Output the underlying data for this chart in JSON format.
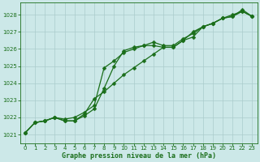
{
  "title": "Graphe pression niveau de la mer (hPa)",
  "bg_color": "#cce8e8",
  "grid_color": "#aacccc",
  "line_color": "#1a6e1a",
  "xlim": [
    -0.5,
    23.5
  ],
  "ylim": [
    1020.5,
    1028.7
  ],
  "yticks": [
    1021,
    1022,
    1023,
    1024,
    1025,
    1026,
    1027,
    1028
  ],
  "xticks": [
    0,
    1,
    2,
    3,
    4,
    5,
    6,
    7,
    8,
    9,
    10,
    11,
    12,
    13,
    14,
    15,
    16,
    17,
    18,
    19,
    20,
    21,
    22,
    23
  ],
  "series": [
    [
      1021.1,
      1021.7,
      1021.8,
      1022.0,
      1021.8,
      1021.8,
      1022.1,
      1022.5,
      1023.7,
      1025.0,
      1025.9,
      1026.1,
      1026.2,
      1026.2,
      1026.1,
      1026.1,
      1026.5,
      1026.7,
      1027.3,
      1027.5,
      1027.8,
      1027.9,
      1028.2,
      1027.9
    ],
    [
      1021.1,
      1021.7,
      1021.8,
      1022.0,
      1021.8,
      1021.8,
      1022.2,
      1023.1,
      1023.5,
      1024.0,
      1024.5,
      1024.9,
      1025.3,
      1025.7,
      1026.1,
      1026.1,
      1026.5,
      1027.0,
      1027.3,
      1027.5,
      1027.8,
      1028.0,
      1028.2,
      1027.9
    ],
    [
      1021.1,
      1021.7,
      1021.8,
      1022.0,
      1021.9,
      1022.0,
      1022.3,
      1022.7,
      1024.9,
      1025.3,
      1025.8,
      1026.0,
      1026.2,
      1026.4,
      1026.2,
      1026.2,
      1026.6,
      1026.9,
      1027.3,
      1027.5,
      1027.8,
      1027.9,
      1028.3,
      1027.9
    ]
  ],
  "marker": "D",
  "markersize": 2.5,
  "linewidth": 0.9,
  "figsize": [
    3.2,
    2.0
  ],
  "dpi": 100,
  "xlabel_fontsize": 6.0,
  "tick_fontsize": 5.0
}
